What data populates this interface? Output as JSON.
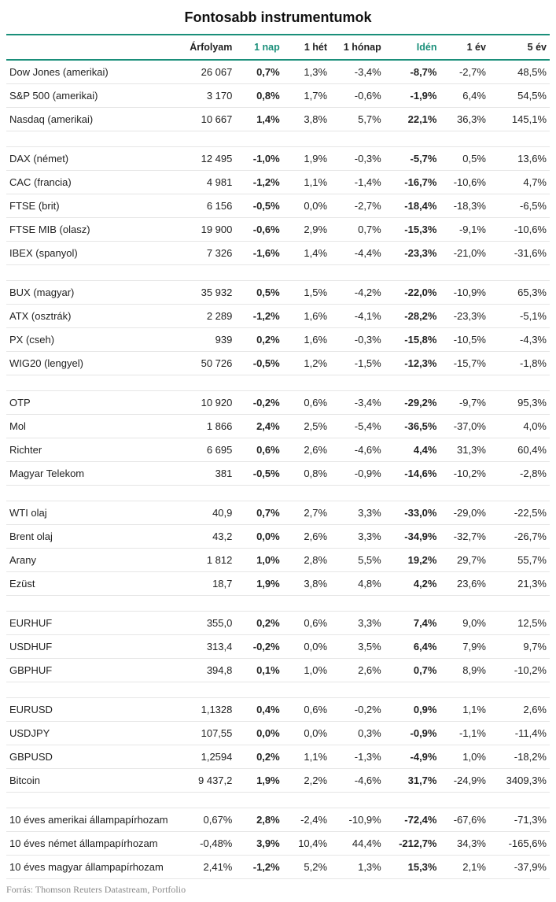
{
  "title": "Fontosabb instrumentumok",
  "source": "Forrás: Thomson Reuters Datastream, Portfolio",
  "accent_color": "#1a8f7a",
  "border_color": "#e6e6e6",
  "text_color": "#222222",
  "background_color": "#ffffff",
  "columns": [
    {
      "key": "name",
      "label": "",
      "highlight": false,
      "class": "namecol"
    },
    {
      "key": "price",
      "label": "Árfolyam",
      "highlight": false
    },
    {
      "key": "d1",
      "label": "1 nap",
      "highlight": true
    },
    {
      "key": "w1",
      "label": "1 hét",
      "highlight": false
    },
    {
      "key": "m1",
      "label": "1 hónap",
      "highlight": false
    },
    {
      "key": "ytd",
      "label": "Idén",
      "highlight": true
    },
    {
      "key": "y1",
      "label": "1 év",
      "highlight": false
    },
    {
      "key": "y5",
      "label": "5 év",
      "highlight": false
    }
  ],
  "groups": [
    [
      {
        "name": "Dow Jones (amerikai)",
        "price": "26 067",
        "d1": "0,7%",
        "w1": "1,3%",
        "m1": "-3,4%",
        "ytd": "-8,7%",
        "y1": "-2,7%",
        "y5": "48,5%"
      },
      {
        "name": "S&P 500 (amerikai)",
        "price": "3 170",
        "d1": "0,8%",
        "w1": "1,7%",
        "m1": "-0,6%",
        "ytd": "-1,9%",
        "y1": "6,4%",
        "y5": "54,5%"
      },
      {
        "name": "Nasdaq (amerikai)",
        "price": "10 667",
        "d1": "1,4%",
        "w1": "3,8%",
        "m1": "5,7%",
        "ytd": "22,1%",
        "y1": "36,3%",
        "y5": "145,1%"
      }
    ],
    [
      {
        "name": "DAX (német)",
        "price": "12 495",
        "d1": "-1,0%",
        "w1": "1,9%",
        "m1": "-0,3%",
        "ytd": "-5,7%",
        "y1": "0,5%",
        "y5": "13,6%"
      },
      {
        "name": "CAC (francia)",
        "price": "4 981",
        "d1": "-1,2%",
        "w1": "1,1%",
        "m1": "-1,4%",
        "ytd": "-16,7%",
        "y1": "-10,6%",
        "y5": "4,7%"
      },
      {
        "name": "FTSE (brit)",
        "price": "6 156",
        "d1": "-0,5%",
        "w1": "0,0%",
        "m1": "-2,7%",
        "ytd": "-18,4%",
        "y1": "-18,3%",
        "y5": "-6,5%"
      },
      {
        "name": "FTSE MIB (olasz)",
        "price": "19 900",
        "d1": "-0,6%",
        "w1": "2,9%",
        "m1": "0,7%",
        "ytd": "-15,3%",
        "y1": "-9,1%",
        "y5": "-10,6%"
      },
      {
        "name": "IBEX (spanyol)",
        "price": "7 326",
        "d1": "-1,6%",
        "w1": "1,4%",
        "m1": "-4,4%",
        "ytd": "-23,3%",
        "y1": "-21,0%",
        "y5": "-31,6%"
      }
    ],
    [
      {
        "name": "BUX (magyar)",
        "price": "35 932",
        "d1": "0,5%",
        "w1": "1,5%",
        "m1": "-4,2%",
        "ytd": "-22,0%",
        "y1": "-10,9%",
        "y5": "65,3%"
      },
      {
        "name": "ATX (osztrák)",
        "price": "2 289",
        "d1": "-1,2%",
        "w1": "1,6%",
        "m1": "-4,1%",
        "ytd": "-28,2%",
        "y1": "-23,3%",
        "y5": "-5,1%"
      },
      {
        "name": "PX (cseh)",
        "price": "939",
        "d1": "0,2%",
        "w1": "1,6%",
        "m1": "-0,3%",
        "ytd": "-15,8%",
        "y1": "-10,5%",
        "y5": "-4,3%"
      },
      {
        "name": "WIG20 (lengyel)",
        "price": "50 726",
        "d1": "-0,5%",
        "w1": "1,2%",
        "m1": "-1,5%",
        "ytd": "-12,3%",
        "y1": "-15,7%",
        "y5": "-1,8%"
      }
    ],
    [
      {
        "name": "OTP",
        "price": "10 920",
        "d1": "-0,2%",
        "w1": "0,6%",
        "m1": "-3,4%",
        "ytd": "-29,2%",
        "y1": "-9,7%",
        "y5": "95,3%"
      },
      {
        "name": "Mol",
        "price": "1 866",
        "d1": "2,4%",
        "w1": "2,5%",
        "m1": "-5,4%",
        "ytd": "-36,5%",
        "y1": "-37,0%",
        "y5": "4,0%"
      },
      {
        "name": "Richter",
        "price": "6 695",
        "d1": "0,6%",
        "w1": "2,6%",
        "m1": "-4,6%",
        "ytd": "4,4%",
        "y1": "31,3%",
        "y5": "60,4%"
      },
      {
        "name": "Magyar Telekom",
        "price": "381",
        "d1": "-0,5%",
        "w1": "0,8%",
        "m1": "-0,9%",
        "ytd": "-14,6%",
        "y1": "-10,2%",
        "y5": "-2,8%"
      }
    ],
    [
      {
        "name": "WTI olaj",
        "price": "40,9",
        "d1": "0,7%",
        "w1": "2,7%",
        "m1": "3,3%",
        "ytd": "-33,0%",
        "y1": "-29,0%",
        "y5": "-22,5%"
      },
      {
        "name": "Brent olaj",
        "price": "43,2",
        "d1": "0,0%",
        "w1": "2,6%",
        "m1": "3,3%",
        "ytd": "-34,9%",
        "y1": "-32,7%",
        "y5": "-26,7%"
      },
      {
        "name": "Arany",
        "price": "1 812",
        "d1": "1,0%",
        "w1": "2,8%",
        "m1": "5,5%",
        "ytd": "19,2%",
        "y1": "29,7%",
        "y5": "55,7%"
      },
      {
        "name": "Ezüst",
        "price": "18,7",
        "d1": "1,9%",
        "w1": "3,8%",
        "m1": "4,8%",
        "ytd": "4,2%",
        "y1": "23,6%",
        "y5": "21,3%"
      }
    ],
    [
      {
        "name": "EURHUF",
        "price": "355,0",
        "d1": "0,2%",
        "w1": "0,6%",
        "m1": "3,3%",
        "ytd": "7,4%",
        "y1": "9,0%",
        "y5": "12,5%"
      },
      {
        "name": "USDHUF",
        "price": "313,4",
        "d1": "-0,2%",
        "w1": "0,0%",
        "m1": "3,5%",
        "ytd": "6,4%",
        "y1": "7,9%",
        "y5": "9,7%"
      },
      {
        "name": "GBPHUF",
        "price": "394,8",
        "d1": "0,1%",
        "w1": "1,0%",
        "m1": "2,6%",
        "ytd": "0,7%",
        "y1": "8,9%",
        "y5": "-10,2%"
      }
    ],
    [
      {
        "name": "EURUSD",
        "price": "1,1328",
        "d1": "0,4%",
        "w1": "0,6%",
        "m1": "-0,2%",
        "ytd": "0,9%",
        "y1": "1,1%",
        "y5": "2,6%"
      },
      {
        "name": "USDJPY",
        "price": "107,55",
        "d1": "0,0%",
        "w1": "0,0%",
        "m1": "0,3%",
        "ytd": "-0,9%",
        "y1": "-1,1%",
        "y5": "-11,4%"
      },
      {
        "name": "GBPUSD",
        "price": "1,2594",
        "d1": "0,2%",
        "w1": "1,1%",
        "m1": "-1,3%",
        "ytd": "-4,9%",
        "y1": "1,0%",
        "y5": "-18,2%"
      },
      {
        "name": "Bitcoin",
        "price": "9 437,2",
        "d1": "1,9%",
        "w1": "2,2%",
        "m1": "-4,6%",
        "ytd": "31,7%",
        "y1": "-24,9%",
        "y5": "3409,3%"
      }
    ],
    [
      {
        "name": "10 éves amerikai állampapírhozam",
        "price": "0,67%",
        "d1": "2,8%",
        "w1": "-2,4%",
        "m1": "-10,9%",
        "ytd": "-72,4%",
        "y1": "-67,6%",
        "y5": "-71,3%"
      },
      {
        "name": "10 éves német állampapírhozam",
        "price": "-0,48%",
        "d1": "3,9%",
        "w1": "10,4%",
        "m1": "44,4%",
        "ytd": "-212,7%",
        "y1": "34,3%",
        "y5": "-165,6%"
      },
      {
        "name": "10 éves magyar állampapírhozam",
        "price": "2,41%",
        "d1": "-1,2%",
        "w1": "5,2%",
        "m1": "1,3%",
        "ytd": "15,3%",
        "y1": "2,1%",
        "y5": "-37,9%"
      }
    ]
  ]
}
